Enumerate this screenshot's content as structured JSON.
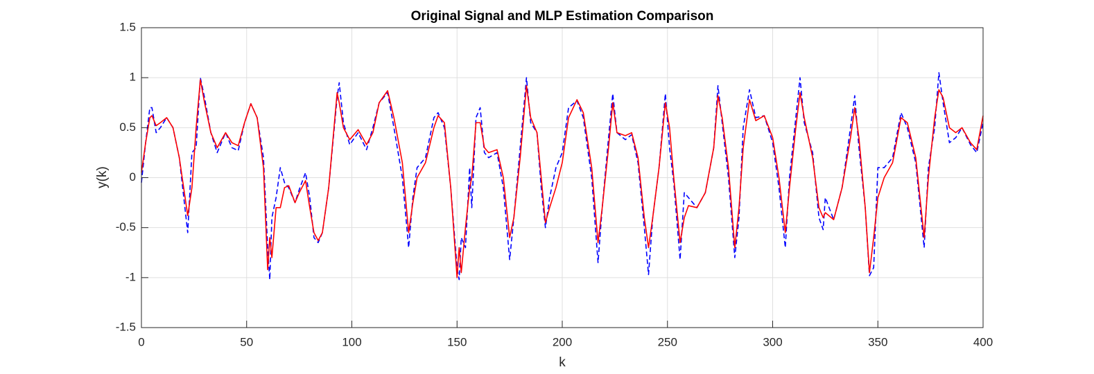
{
  "chart_data": {
    "type": "line",
    "title": "Original Signal and MLP Estimation Comparison",
    "xlabel": "k",
    "ylabel": "y(k)",
    "x": [
      0,
      2,
      4,
      5,
      7,
      9,
      12,
      15,
      18,
      22,
      24,
      26,
      28,
      30,
      33,
      36,
      40,
      43,
      46,
      49,
      52,
      55,
      58,
      60,
      61,
      62,
      64,
      66,
      68,
      70,
      73,
      75,
      78,
      80,
      82,
      84,
      86,
      89,
      93,
      94,
      96,
      99,
      103,
      107,
      110,
      113,
      117,
      120,
      124,
      127,
      129,
      131,
      135,
      139,
      141,
      144,
      147,
      150,
      151,
      152,
      154,
      156,
      157,
      159,
      161,
      163,
      165,
      169,
      172,
      175,
      177,
      180,
      183,
      185,
      188,
      190,
      192,
      194,
      197,
      200,
      203,
      207,
      210,
      214,
      217,
      219,
      222,
      224,
      226,
      230,
      233,
      236,
      239,
      241,
      243,
      246,
      249,
      251,
      253,
      256,
      258,
      260,
      264,
      268,
      272,
      274,
      276,
      279,
      282,
      284,
      286,
      289,
      292,
      296,
      300,
      303,
      306,
      308,
      311,
      313,
      315,
      319,
      322,
      324,
      325,
      329,
      333,
      337,
      339,
      341,
      344,
      346,
      348,
      350,
      353,
      357,
      361,
      364,
      368,
      372,
      374,
      377,
      379,
      381,
      384,
      387,
      390,
      394,
      397,
      400
    ],
    "series": [
      {
        "color": "#0000ff",
        "line_style": "dashed",
        "values": [
          -0.05,
          0.35,
          0.7,
          0.7,
          0.45,
          0.5,
          0.6,
          0.5,
          0.2,
          -0.55,
          0.25,
          0.3,
          1.0,
          0.8,
          0.45,
          0.25,
          0.45,
          0.3,
          0.27,
          0.55,
          0.74,
          0.6,
          0.2,
          -0.7,
          -1.02,
          -0.4,
          -0.2,
          0.1,
          -0.05,
          -0.1,
          -0.25,
          -0.12,
          0.05,
          -0.2,
          -0.6,
          -0.65,
          -0.55,
          -0.1,
          0.8,
          0.95,
          0.55,
          0.33,
          0.45,
          0.28,
          0.5,
          0.75,
          0.85,
          0.5,
          0.0,
          -0.7,
          -0.2,
          0.1,
          0.2,
          0.6,
          0.65,
          0.5,
          -0.1,
          -0.9,
          -1.02,
          -0.6,
          -0.7,
          0.1,
          -0.3,
          0.6,
          0.7,
          0.25,
          0.2,
          0.25,
          -0.1,
          -0.82,
          -0.4,
          0.3,
          1.0,
          0.55,
          0.45,
          -0.1,
          -0.5,
          -0.2,
          0.1,
          0.25,
          0.7,
          0.77,
          0.6,
          0.0,
          -0.85,
          -0.3,
          0.4,
          0.84,
          0.45,
          0.38,
          0.43,
          0.15,
          -0.5,
          -0.97,
          -0.4,
          0.1,
          0.84,
          0.3,
          -0.05,
          -0.82,
          -0.15,
          -0.2,
          -0.3,
          -0.15,
          0.3,
          0.92,
          0.55,
          0.0,
          -0.8,
          -0.4,
          0.5,
          0.88,
          0.6,
          0.62,
          0.35,
          -0.1,
          -0.7,
          0.0,
          0.6,
          1.0,
          0.55,
          0.25,
          -0.4,
          -0.52,
          -0.2,
          -0.42,
          -0.1,
          0.5,
          0.82,
          0.3,
          -0.3,
          -0.98,
          -0.9,
          0.1,
          0.1,
          0.2,
          0.65,
          0.5,
          0.15,
          -0.7,
          0.1,
          0.5,
          1.05,
          0.75,
          0.35,
          0.4,
          0.5,
          0.33,
          0.25,
          0.55
        ]
      },
      {
        "color": "#ff0000",
        "line_style": "solid",
        "values": [
          0.05,
          0.35,
          0.6,
          0.62,
          0.52,
          0.55,
          0.6,
          0.5,
          0.2,
          -0.38,
          -0.1,
          0.5,
          0.98,
          0.75,
          0.45,
          0.3,
          0.45,
          0.35,
          0.32,
          0.55,
          0.74,
          0.6,
          0.1,
          -0.92,
          -0.6,
          -0.8,
          -0.3,
          -0.3,
          -0.1,
          -0.08,
          -0.25,
          -0.15,
          -0.03,
          -0.3,
          -0.55,
          -0.63,
          -0.55,
          -0.1,
          0.85,
          0.75,
          0.5,
          0.38,
          0.48,
          0.33,
          0.45,
          0.75,
          0.87,
          0.6,
          0.15,
          -0.55,
          -0.25,
          0.0,
          0.15,
          0.5,
          0.62,
          0.55,
          -0.1,
          -1.0,
          -0.7,
          -0.95,
          -0.5,
          -0.1,
          0.0,
          0.55,
          0.55,
          0.3,
          0.25,
          0.28,
          0.0,
          -0.6,
          -0.4,
          0.2,
          0.92,
          0.6,
          0.45,
          0.0,
          -0.45,
          -0.3,
          -0.1,
          0.15,
          0.6,
          0.78,
          0.65,
          0.1,
          -0.65,
          -0.3,
          0.3,
          0.75,
          0.45,
          0.42,
          0.45,
          0.2,
          -0.4,
          -0.7,
          -0.4,
          0.1,
          0.75,
          0.5,
          0.0,
          -0.65,
          -0.4,
          -0.28,
          -0.3,
          -0.15,
          0.3,
          0.82,
          0.6,
          0.1,
          -0.7,
          -0.3,
          0.3,
          0.78,
          0.57,
          0.62,
          0.4,
          0.0,
          -0.55,
          -0.1,
          0.5,
          0.85,
          0.6,
          0.2,
          -0.3,
          -0.4,
          -0.35,
          -0.42,
          -0.1,
          0.4,
          0.7,
          0.4,
          -0.3,
          -0.95,
          -0.6,
          -0.2,
          0.0,
          0.15,
          0.6,
          0.55,
          0.2,
          -0.6,
          0.0,
          0.6,
          0.88,
          0.8,
          0.5,
          0.45,
          0.5,
          0.35,
          0.28,
          0.62
        ]
      }
    ],
    "xlim": [
      0,
      400
    ],
    "xticks": [
      0,
      50,
      100,
      150,
      200,
      250,
      300,
      350,
      400
    ],
    "ylim": [
      -1.5,
      1.5
    ],
    "yticks": [
      -1.5,
      -1,
      -0.5,
      0,
      0.5,
      1,
      1.5
    ],
    "grid": true
  }
}
